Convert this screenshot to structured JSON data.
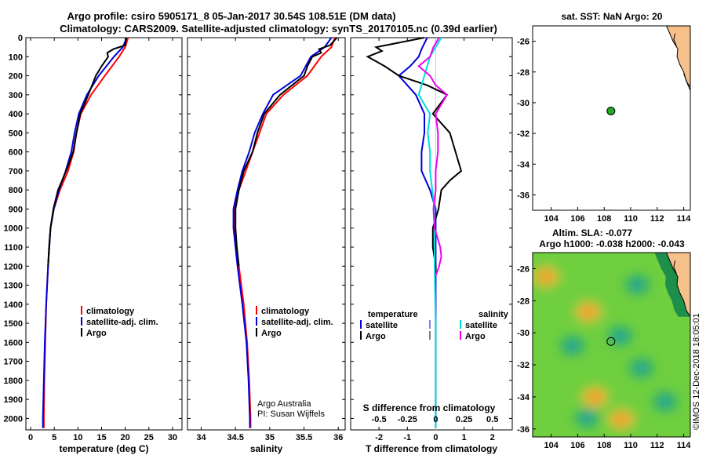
{
  "title_line1": "Argo profile: csiro 5905171_8 05-Jan-2017 30.54S 108.51E (DM data)",
  "title_line2": "Climatology: CARS2009. Satellite-adjusted climatology: synTS_20170105.nc (0.39d earlier)",
  "credit": "Argo Australia",
  "pi": "PI: Susan Wijffels",
  "footer": "©IMOS 12-Dec-2018 18:05:01",
  "colors": {
    "argo": "#000000",
    "clim": "#ff0000",
    "sat": "#0000dd",
    "satS": "#00dddd",
    "argoS": "#ee00ee",
    "float": "#22aa22"
  },
  "chart_data": [
    {
      "type": "line",
      "name": "temperature-profile",
      "xlabel": "temperature (deg C)",
      "ylabel": "depth",
      "xlim": [
        -1,
        32
      ],
      "ylim": [
        2060,
        0
      ],
      "xticks": [
        0,
        5,
        10,
        15,
        20,
        25,
        30
      ],
      "yticks": [
        0,
        100,
        200,
        300,
        400,
        500,
        600,
        700,
        800,
        900,
        1000,
        1100,
        1200,
        1300,
        1400,
        1500,
        1600,
        1700,
        1800,
        1900,
        2000
      ],
      "legend": [
        "climatology",
        "satellite-adj. clim.",
        "Argo"
      ],
      "series": [
        {
          "name": "climatology",
          "color": "#ff0000",
          "depth": [
            0,
            50,
            100,
            200,
            300,
            400,
            500,
            600,
            700,
            800,
            900,
            1000,
            1200,
            1400,
            1600,
            1800,
            2000,
            2050
          ],
          "values": [
            20.6,
            20,
            18.7,
            15.7,
            12.8,
            10.6,
            9.7,
            9.1,
            7.9,
            6.2,
            4.9,
            4.2,
            3.7,
            3.3,
            3.1,
            2.9,
            2.8,
            2.8
          ]
        },
        {
          "name": "satellite-adj. clim.",
          "color": "#0000dd",
          "depth": [
            0,
            50,
            100,
            200,
            300,
            400,
            500,
            600,
            700,
            800,
            900,
            1000,
            1200,
            1400,
            1600,
            1800,
            2000,
            2050
          ],
          "values": [
            20.3,
            19.5,
            17.6,
            14.4,
            11.9,
            10.2,
            9.3,
            8.6,
            7.4,
            6,
            4.9,
            4.2,
            3.7,
            3.3,
            3,
            2.8,
            2.6,
            2.6
          ]
        },
        {
          "name": "Argo",
          "color": "#000000",
          "depth": [
            0,
            40,
            60,
            80,
            100,
            150,
            200,
            300,
            400,
            500,
            600,
            700,
            800,
            900,
            1000,
            1100,
            1200
          ],
          "values": [
            20.2,
            20,
            17.5,
            16.2,
            16.4,
            15,
            13.8,
            12.2,
            10.5,
            9.7,
            9,
            7.5,
            5.8,
            4.8,
            4.2,
            3.9,
            3.7
          ]
        }
      ]
    },
    {
      "type": "line",
      "name": "salinity-profile",
      "xlabel": "salinity",
      "xlim": [
        33.8,
        36.1
      ],
      "ylim": [
        2060,
        0
      ],
      "xticks": [
        34,
        34.5,
        35,
        35.5,
        36
      ],
      "legend": [
        "climatology",
        "satellite-adj. clim.",
        "Argo"
      ],
      "series": [
        {
          "name": "climatology",
          "color": "#ff0000",
          "depth": [
            0,
            50,
            100,
            200,
            300,
            400,
            500,
            600,
            700,
            800,
            900,
            1000,
            1200,
            1400,
            1600,
            1800,
            2000,
            2050
          ],
          "values": [
            35.95,
            35.9,
            35.75,
            35.55,
            35.2,
            34.95,
            34.85,
            34.75,
            34.65,
            34.55,
            34.48,
            34.48,
            34.55,
            34.62,
            34.67,
            34.7,
            34.72,
            34.72
          ]
        },
        {
          "name": "satellite-adj. clim.",
          "color": "#0000dd",
          "depth": [
            0,
            50,
            100,
            200,
            300,
            400,
            500,
            600,
            700,
            800,
            900,
            1000,
            1200,
            1400,
            1600,
            1800,
            2000,
            2050
          ],
          "values": [
            35.9,
            35.8,
            35.6,
            35.45,
            35.05,
            34.9,
            34.78,
            34.7,
            34.6,
            34.53,
            34.47,
            34.47,
            34.53,
            34.6,
            34.66,
            34.69,
            34.71,
            34.71
          ]
        },
        {
          "name": "Argo",
          "color": "#000000",
          "depth": [
            0,
            40,
            60,
            80,
            100,
            150,
            200,
            300,
            400,
            500,
            600,
            700,
            800,
            900,
            1000,
            1100,
            1200
          ],
          "values": [
            35.98,
            35.88,
            35.72,
            35.75,
            35.62,
            35.55,
            35.5,
            35.15,
            34.92,
            34.82,
            34.75,
            34.62,
            34.55,
            34.5,
            34.5,
            34.52,
            34.55
          ]
        }
      ]
    },
    {
      "type": "line",
      "name": "difference-profile",
      "xlabel": "T difference from climatology",
      "xlabel_top": "S difference from climatology",
      "xlim": [
        -3,
        2.7
      ],
      "ylim": [
        2060,
        0
      ],
      "xticks": [
        -2,
        -1,
        0,
        1,
        2
      ],
      "xticks_top": [
        -0.5,
        -0.25,
        0,
        0.25,
        0.5
      ],
      "xticks_top_labels": [
        "-0.5",
        "-0.25",
        "0",
        "0.25",
        "0.5"
      ],
      "legend_temperature": [
        "temperature",
        "satellite",
        "Argo"
      ],
      "legend_salinity": [
        "salinity",
        "satellite",
        "Argo"
      ],
      "series": [
        {
          "name": "T satellite",
          "color": "#0000dd",
          "axis": "T",
          "depth": [
            0,
            60,
            100,
            150,
            200,
            250,
            300,
            400,
            500,
            600,
            700,
            800,
            900,
            1000,
            1100,
            1200,
            1500,
            2050
          ],
          "values": [
            -0.3,
            -0.5,
            -0.6,
            -0.9,
            -1.3,
            -1,
            -0.7,
            -0.4,
            -0.4,
            -0.5,
            -0.5,
            -0.2,
            0,
            0,
            0,
            0,
            0,
            0
          ]
        },
        {
          "name": "T Argo",
          "color": "#000000",
          "axis": "T",
          "depth": [
            0,
            50,
            70,
            100,
            150,
            200,
            250,
            300,
            400,
            500,
            600,
            700,
            750,
            800,
            900,
            1000,
            1100,
            1200,
            1250
          ],
          "values": [
            -0.4,
            -2.1,
            -1.9,
            -2.4,
            -1.8,
            -1.3,
            -0.3,
            0.4,
            -0.1,
            0.5,
            0.7,
            0.9,
            0.5,
            0.2,
            0.1,
            -0.1,
            -0.1,
            0,
            0
          ]
        },
        {
          "name": "S satellite",
          "color": "#00dddd",
          "axis": "S",
          "depth": [
            0,
            50,
            100,
            200,
            300,
            400,
            500,
            600,
            700,
            800,
            900,
            1000,
            1200,
            1500,
            2050
          ],
          "values": [
            0.05,
            0.0,
            -0.05,
            -0.1,
            -0.15,
            -0.05,
            -0.07,
            -0.05,
            -0.05,
            -0.03,
            -0.01,
            -0.01,
            -0.01,
            0,
            0
          ]
        },
        {
          "name": "S Argo",
          "color": "#ee00ee",
          "axis": "S",
          "depth": [
            0,
            50,
            100,
            150,
            200,
            250,
            300,
            400,
            500,
            600,
            700,
            800,
            900,
            1000,
            1100,
            1150,
            1200,
            1250
          ],
          "values": [
            0.03,
            -0.02,
            -0.05,
            -0.15,
            -0.05,
            0,
            0.1,
            0,
            0.02,
            0.02,
            0,
            0,
            -0.02,
            -0.01,
            0.04,
            0.05,
            0.03,
            0
          ]
        }
      ]
    },
    {
      "type": "scatter",
      "name": "location-map",
      "title": "sat. SST: NaN Argo: 20",
      "xlim": [
        102.6,
        114.5
      ],
      "ylim": [
        -37,
        -25
      ],
      "xticks": [
        104,
        106,
        108,
        110,
        112,
        114
      ],
      "yticks": [
        -26,
        -28,
        -30,
        -32,
        -34,
        -36
      ],
      "point": {
        "lon": 108.51,
        "lat": -30.54
      }
    },
    {
      "type": "heatmap",
      "name": "altimetry-map",
      "title": "Altim. SLA: -0.077",
      "subtitle": "Argo h1000: -0.038 h2000: -0.043",
      "xlim": [
        102.6,
        114.5
      ],
      "ylim": [
        -36.5,
        -25
      ],
      "xticks": [
        104,
        106,
        108,
        110,
        112,
        114
      ],
      "yticks": [
        -26,
        -28,
        -30,
        -32,
        -34,
        -36
      ],
      "point": {
        "lon": 108.51,
        "lat": -30.54
      },
      "anomalies": [
        {
          "lon": 103.6,
          "lat": -26.5,
          "sign": "high"
        },
        {
          "lon": 105.6,
          "lat": -30.8,
          "sign": "low"
        },
        {
          "lon": 107.3,
          "lat": -34.0,
          "sign": "high"
        },
        {
          "lon": 106.7,
          "lat": -35.3,
          "sign": "low"
        },
        {
          "lon": 110.8,
          "lat": -32.2,
          "sign": "low"
        },
        {
          "lon": 112.6,
          "lat": -34.3,
          "sign": "low"
        },
        {
          "lon": 110.5,
          "lat": -27.0,
          "sign": "low"
        },
        {
          "lon": 106.8,
          "lat": -28.7,
          "sign": "high"
        },
        {
          "lon": 109.3,
          "lat": -35.4,
          "sign": "high"
        },
        {
          "lon": 109.2,
          "lat": -30.2,
          "sign": "low"
        }
      ]
    }
  ]
}
